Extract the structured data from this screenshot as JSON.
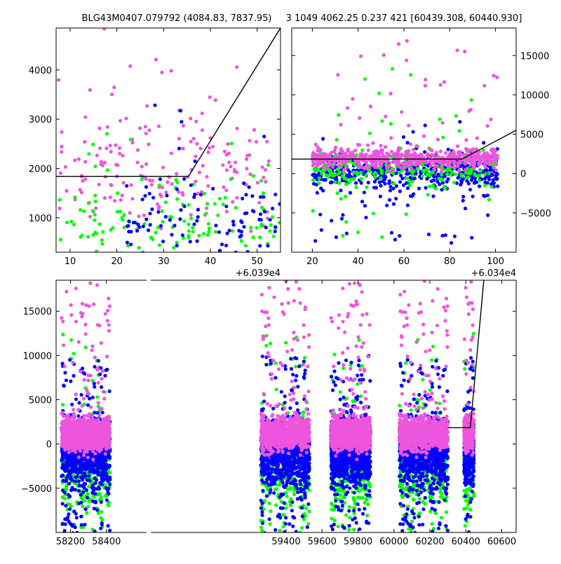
{
  "chart_data": {
    "type": "scatter",
    "title_left": "BLG43M0407.079792 (4084.83, 7837.95)",
    "title_right": "3 1049 4062.25 0.237 421 [60439.308, 60440.930]",
    "colors": {
      "blue": "#0000ff",
      "green": "#00ff00",
      "magenta": "#ee55dd",
      "line": "#000000"
    },
    "grid": false,
    "panels": [
      {
        "id": "top-left",
        "xlim": [
          60397,
          60445
        ],
        "ylim": [
          300,
          4850
        ],
        "x_offset_label": "+6.039e4",
        "x_ticks": [
          {
            "v": 60400,
            "label": "10"
          },
          {
            "v": 60410,
            "label": "20"
          },
          {
            "v": 60420,
            "label": "30"
          },
          {
            "v": 60430,
            "label": "40"
          },
          {
            "v": 60440,
            "label": "50"
          }
        ],
        "y_ticks": [
          {
            "v": 1000,
            "label": "1000"
          },
          {
            "v": 2000,
            "label": "2000"
          },
          {
            "v": 3000,
            "label": "3000"
          },
          {
            "v": 4000,
            "label": "4000"
          }
        ],
        "y_tick_side": "left",
        "model_line": [
          [
            60397,
            1840
          ],
          [
            60425.3,
            1840
          ],
          [
            60445,
            4850
          ]
        ],
        "series": [
          {
            "color": "magenta",
            "x_min": 60397,
            "x_max": 60443,
            "y_center": 1900,
            "y_spread": 900,
            "y_tail_up": 3000,
            "n": 180
          },
          {
            "color": "green",
            "x_min": 60397,
            "x_max": 60445,
            "y_center": 800,
            "y_spread": 600,
            "y_tail_up": 2000,
            "n": 140
          },
          {
            "color": "blue",
            "x_min": 60412,
            "x_max": 60445,
            "y_center": 900,
            "y_spread": 700,
            "y_tail_up": 2500,
            "n": 110
          }
        ]
      },
      {
        "id": "top-right",
        "xlim": [
          60351,
          60449
        ],
        "ylim": [
          -10000,
          18500
        ],
        "x_offset_label": "+6.034e4",
        "x_ticks": [
          {
            "v": 60360,
            "label": "20"
          },
          {
            "v": 60380,
            "label": "40"
          },
          {
            "v": 60400,
            "label": "60"
          },
          {
            "v": 60420,
            "label": "80"
          },
          {
            "v": 60440,
            "label": "100"
          }
        ],
        "y_ticks": [
          {
            "v": -5000,
            "label": "−5000"
          },
          {
            "v": 0,
            "label": "0"
          },
          {
            "v": 5000,
            "label": "5000"
          },
          {
            "v": 10000,
            "label": "10000"
          },
          {
            "v": 15000,
            "label": "15000"
          }
        ],
        "y_tick_side": "right",
        "model_line": [
          [
            60351,
            1840
          ],
          [
            60425.3,
            1840
          ],
          [
            60449,
            5500
          ]
        ],
        "series": [
          {
            "color": "blue",
            "x_min": 60360,
            "x_max": 60441,
            "y_center": 200,
            "y_spread": 1500,
            "y_tail_down": 9500,
            "y_tail_up": 6500,
            "n": 520
          },
          {
            "color": "green",
            "x_min": 60360,
            "x_max": 60441,
            "y_center": 600,
            "y_spread": 1500,
            "y_tail_down": 9000,
            "y_tail_up": 13000,
            "n": 260
          },
          {
            "color": "magenta",
            "x_min": 60360,
            "x_max": 60441,
            "y_center": 1900,
            "y_spread": 900,
            "y_tail_up": 15000,
            "n": 560
          }
        ]
      },
      {
        "id": "bottom",
        "xlim": [
          58120,
          60680
        ],
        "ylim": [
          -10000,
          18500
        ],
        "x_ticks": [
          {
            "v": 58200,
            "label": "58200"
          },
          {
            "v": 58400,
            "label": "58400"
          },
          {
            "v": 59400,
            "label": "59400"
          },
          {
            "v": 59600,
            "label": "59600"
          },
          {
            "v": 59800,
            "label": "59800"
          },
          {
            "v": 60000,
            "label": "60000"
          },
          {
            "v": 60200,
            "label": "60200"
          },
          {
            "v": 60400,
            "label": "60400"
          },
          {
            "v": 60600,
            "label": "60600"
          }
        ],
        "y_ticks": [
          {
            "v": -5000,
            "label": "−5000"
          },
          {
            "v": 0,
            "label": "0"
          },
          {
            "v": 5000,
            "label": "5000"
          },
          {
            "v": 10000,
            "label": "10000"
          },
          {
            "v": 15000,
            "label": "15000"
          }
        ],
        "y_tick_side": "left",
        "model_line": [
          [
            60300,
            1840
          ],
          [
            60425.3,
            1840
          ],
          [
            60500,
            18500
          ]
        ],
        "seasons": [
          [
            58150,
            58420
          ],
          [
            59260,
            59530
          ],
          [
            59650,
            59870
          ],
          [
            60030,
            60300
          ],
          [
            60390,
            60445
          ]
        ],
        "series": [
          {
            "color": "green",
            "y_center": -2500,
            "y_spread": 3500,
            "y_tail_down": 9800,
            "y_tail_up": 15000,
            "n_per_season": 320
          },
          {
            "color": "blue",
            "y_center": -1000,
            "y_spread": 2400,
            "y_tail_down": 9500,
            "y_tail_up": 11000,
            "n_per_season": 900
          },
          {
            "color": "magenta",
            "y_center": 1100,
            "y_spread": 1200,
            "y_tail_up": 17500,
            "n_per_season": 1100
          }
        ]
      }
    ]
  }
}
